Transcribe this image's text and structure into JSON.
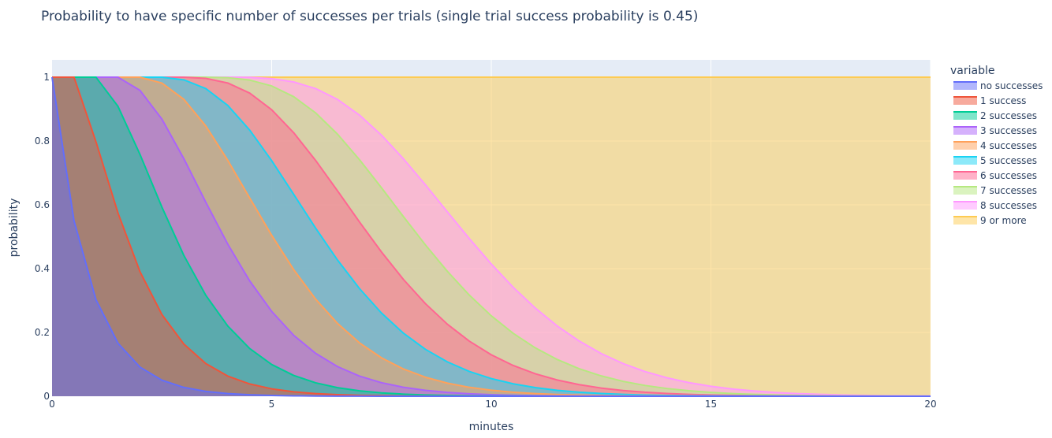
{
  "chart_data": {
    "type": "area",
    "stacked": true,
    "title": "Probability to have specific number of successes per trials (single trial success probability is 0.45)",
    "xlabel": "minutes",
    "ylabel": "probability",
    "xlim": [
      0,
      20
    ],
    "ylim": [
      0,
      1
    ],
    "x_ticks": [
      0,
      5,
      10,
      15,
      20
    ],
    "y_ticks": [
      0,
      0.2,
      0.4,
      0.6,
      0.8,
      1
    ],
    "trials_per_minute": 2,
    "single_trial_success_probability": 0.45,
    "x_step": 0.5,
    "legend_title": "variable",
    "legend_position": "right",
    "series": [
      {
        "name": "no successes",
        "color": "#636efa"
      },
      {
        "name": "1 success",
        "color": "#ef553b"
      },
      {
        "name": "2 successes",
        "color": "#00cc96"
      },
      {
        "name": "3 successes",
        "color": "#ab63fa"
      },
      {
        "name": "4 successes",
        "color": "#ffa15a"
      },
      {
        "name": "5 successes",
        "color": "#19d3f3"
      },
      {
        "name": "6 successes",
        "color": "#ff6692"
      },
      {
        "name": "7 successes",
        "color": "#b6e880"
      },
      {
        "name": "8 successes",
        "color": "#ff97ff"
      },
      {
        "name": "9 or more",
        "color": "#fecb52"
      }
    ]
  }
}
